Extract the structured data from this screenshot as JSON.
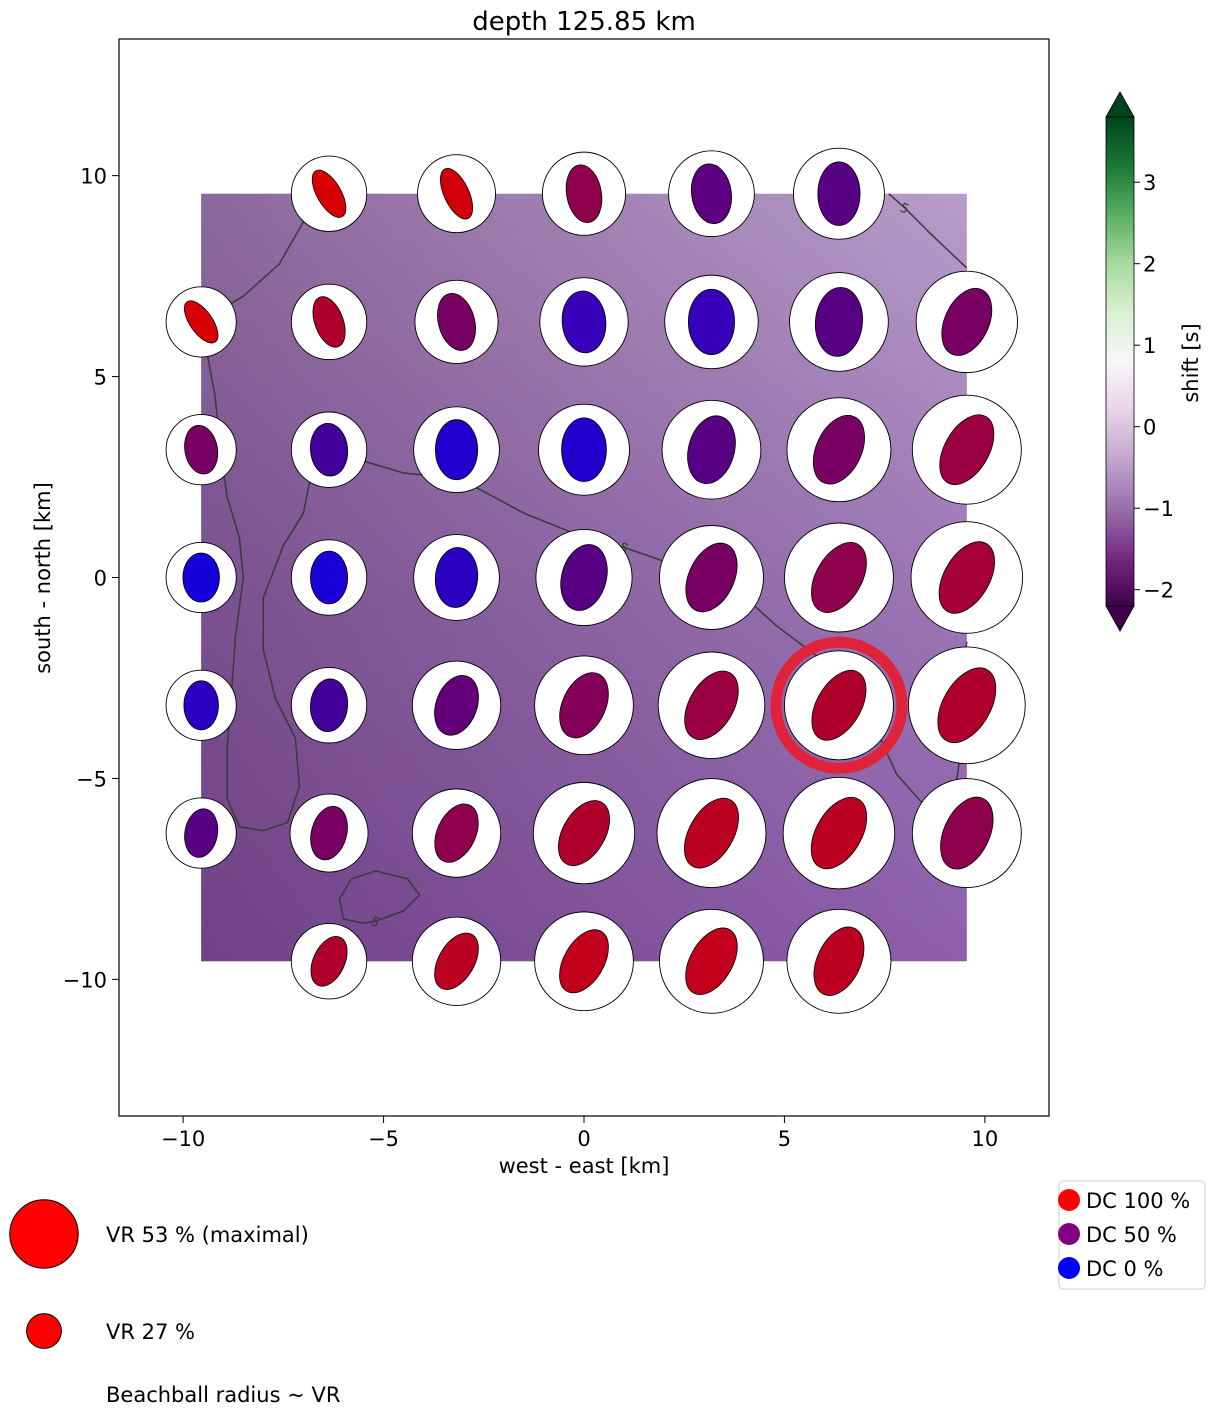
{
  "chart_data": {
    "type": "scatter",
    "title": "depth 125.85 km",
    "xlabel": "west - east [km]",
    "ylabel": "south - north [km]",
    "xlim": [
      -11.6,
      11.6
    ],
    "ylim": [
      -13.4,
      13.4
    ],
    "xticks": [
      -10,
      -5,
      0,
      5,
      10
    ],
    "yticks": [
      -10,
      -5,
      0,
      5,
      10
    ],
    "xtick_labels": [
      "−10",
      "−5",
      "0",
      "5",
      "10"
    ],
    "ytick_labels": [
      "−10",
      "−5",
      "0",
      "5",
      "10"
    ],
    "grid": false,
    "grid_x": [
      -9.55,
      -6.36,
      -3.18,
      0,
      3.18,
      6.36,
      9.55
    ],
    "grid_y": [
      9.55,
      6.36,
      3.18,
      0,
      -3.18,
      -6.36,
      -9.55
    ],
    "background_extent": {
      "x": [
        -9.55,
        9.55
      ],
      "y": [
        -9.55,
        9.55
      ]
    },
    "background_colors": {
      "top": "#b89cc9",
      "mid": "#9b75b5",
      "bottom_left": "#5e1a6c",
      "bottom_right": "#8d5fab"
    },
    "colorbar": {
      "label": "shift [s]",
      "range": [
        -2.2,
        3.8
      ],
      "ticks": [
        3,
        2,
        1,
        0,
        -1,
        -2
      ],
      "tick_labels": [
        "3",
        "2",
        "1",
        "0",
        "−1",
        "−2"
      ],
      "stops": [
        "#00441b",
        "#1b7837",
        "#5aae61",
        "#a6dba0",
        "#d9f0d3",
        "#f7f7f7",
        "#e7d4e8",
        "#c2a5cf",
        "#9970ab",
        "#762a83",
        "#40004b"
      ]
    },
    "contour_label": "5",
    "best_solution": {
      "x": 6.36,
      "y": -3.18,
      "color": "#e0233a"
    },
    "beachballs": [
      {
        "x": -6.36,
        "y": 9.55,
        "vr": 0.29,
        "dc": 0.98,
        "angle": -30,
        "ar": 0.55
      },
      {
        "x": -3.18,
        "y": 9.55,
        "vr": 0.3,
        "dc": 0.95,
        "angle": -25,
        "ar": 0.55
      },
      {
        "x": 0,
        "y": 9.55,
        "vr": 0.32,
        "dc": 0.65,
        "angle": -10,
        "ar": 0.72
      },
      {
        "x": 3.18,
        "y": 9.55,
        "vr": 0.33,
        "dc": 0.42,
        "angle": -8,
        "ar": 0.8
      },
      {
        "x": 6.36,
        "y": 9.55,
        "vr": 0.35,
        "dc": 0.4,
        "angle": 0,
        "ar": 0.8
      },
      {
        "x": -9.55,
        "y": 6.36,
        "vr": 0.27,
        "dc": 0.98,
        "angle": -35,
        "ar": 0.55
      },
      {
        "x": -6.36,
        "y": 6.36,
        "vr": 0.29,
        "dc": 0.8,
        "angle": -20,
        "ar": 0.65
      },
      {
        "x": -3.18,
        "y": 6.36,
        "vr": 0.32,
        "dc": 0.55,
        "angle": -15,
        "ar": 0.75
      },
      {
        "x": 0,
        "y": 6.36,
        "vr": 0.34,
        "dc": 0.25,
        "angle": -5,
        "ar": 0.85
      },
      {
        "x": 3.18,
        "y": 6.36,
        "vr": 0.36,
        "dc": 0.25,
        "angle": 0,
        "ar": 0.85
      },
      {
        "x": 6.36,
        "y": 6.36,
        "vr": 0.38,
        "dc": 0.4,
        "angle": 5,
        "ar": 0.82
      },
      {
        "x": 9.55,
        "y": 6.36,
        "vr": 0.39,
        "dc": 0.55,
        "angle": 25,
        "ar": 0.75
      },
      {
        "x": -9.55,
        "y": 3.18,
        "vr": 0.27,
        "dc": 0.55,
        "angle": -10,
        "ar": 0.8
      },
      {
        "x": -6.36,
        "y": 3.18,
        "vr": 0.29,
        "dc": 0.3,
        "angle": -5,
        "ar": 0.85
      },
      {
        "x": -3.18,
        "y": 3.18,
        "vr": 0.33,
        "dc": 0.15,
        "angle": 0,
        "ar": 0.85
      },
      {
        "x": 0,
        "y": 3.18,
        "vr": 0.35,
        "dc": 0.15,
        "angle": 0,
        "ar": 0.85
      },
      {
        "x": 3.18,
        "y": 3.18,
        "vr": 0.38,
        "dc": 0.4,
        "angle": 15,
        "ar": 0.8
      },
      {
        "x": 6.36,
        "y": 3.18,
        "vr": 0.4,
        "dc": 0.55,
        "angle": 25,
        "ar": 0.75
      },
      {
        "x": 9.55,
        "y": 3.18,
        "vr": 0.42,
        "dc": 0.7,
        "angle": 30,
        "ar": 0.7
      },
      {
        "x": -9.55,
        "y": 0,
        "vr": 0.27,
        "dc": 0.1,
        "angle": 0,
        "ar": 0.9
      },
      {
        "x": -6.36,
        "y": 0,
        "vr": 0.29,
        "dc": 0.12,
        "angle": 0,
        "ar": 0.85
      },
      {
        "x": -3.18,
        "y": 0,
        "vr": 0.33,
        "dc": 0.2,
        "angle": 5,
        "ar": 0.85
      },
      {
        "x": 0,
        "y": 0,
        "vr": 0.37,
        "dc": 0.4,
        "angle": 15,
        "ar": 0.8
      },
      {
        "x": 3.18,
        "y": 0,
        "vr": 0.4,
        "dc": 0.55,
        "angle": 25,
        "ar": 0.75
      },
      {
        "x": 6.36,
        "y": 0,
        "vr": 0.42,
        "dc": 0.65,
        "angle": 30,
        "ar": 0.72
      },
      {
        "x": 9.55,
        "y": 0,
        "vr": 0.43,
        "dc": 0.75,
        "angle": 30,
        "ar": 0.7
      },
      {
        "x": -9.55,
        "y": -3.18,
        "vr": 0.27,
        "dc": 0.2,
        "angle": 0,
        "ar": 0.85
      },
      {
        "x": -6.36,
        "y": -3.18,
        "vr": 0.29,
        "dc": 0.3,
        "angle": 5,
        "ar": 0.85
      },
      {
        "x": -3.18,
        "y": -3.18,
        "vr": 0.34,
        "dc": 0.45,
        "angle": 20,
        "ar": 0.8
      },
      {
        "x": 0,
        "y": -3.18,
        "vr": 0.38,
        "dc": 0.6,
        "angle": 25,
        "ar": 0.75
      },
      {
        "x": 3.18,
        "y": -3.18,
        "vr": 0.41,
        "dc": 0.7,
        "angle": 30,
        "ar": 0.72
      },
      {
        "x": 6.36,
        "y": -3.18,
        "vr": 0.42,
        "dc": 0.8,
        "angle": 30,
        "ar": 0.7
      },
      {
        "x": 9.55,
        "y": -3.18,
        "vr": 0.45,
        "dc": 0.8,
        "angle": 30,
        "ar": 0.7
      },
      {
        "x": -9.55,
        "y": -6.36,
        "vr": 0.27,
        "dc": 0.4,
        "angle": 10,
        "ar": 0.8
      },
      {
        "x": -6.36,
        "y": -6.36,
        "vr": 0.3,
        "dc": 0.55,
        "angle": 15,
        "ar": 0.78
      },
      {
        "x": -3.18,
        "y": -6.36,
        "vr": 0.34,
        "dc": 0.65,
        "angle": 25,
        "ar": 0.75
      },
      {
        "x": 0,
        "y": -6.36,
        "vr": 0.39,
        "dc": 0.8,
        "angle": 30,
        "ar": 0.72
      },
      {
        "x": 3.18,
        "y": -6.36,
        "vr": 0.42,
        "dc": 0.85,
        "angle": 30,
        "ar": 0.7
      },
      {
        "x": 6.36,
        "y": -6.36,
        "vr": 0.43,
        "dc": 0.85,
        "angle": 30,
        "ar": 0.7
      },
      {
        "x": 9.55,
        "y": -6.36,
        "vr": 0.42,
        "dc": 0.65,
        "angle": 25,
        "ar": 0.72
      },
      {
        "x": -6.36,
        "y": -9.55,
        "vr": 0.29,
        "dc": 0.8,
        "angle": 25,
        "ar": 0.72
      },
      {
        "x": -3.18,
        "y": -9.55,
        "vr": 0.34,
        "dc": 0.85,
        "angle": 30,
        "ar": 0.7
      },
      {
        "x": 0,
        "y": -9.55,
        "vr": 0.38,
        "dc": 0.88,
        "angle": 30,
        "ar": 0.7
      },
      {
        "x": 3.18,
        "y": -9.55,
        "vr": 0.4,
        "dc": 0.88,
        "angle": 30,
        "ar": 0.7
      },
      {
        "x": 6.36,
        "y": -9.55,
        "vr": 0.4,
        "dc": 0.85,
        "angle": 25,
        "ar": 0.72
      }
    ],
    "contour_lines": [
      {
        "label_at": null,
        "points": [
          [
            -9.55,
            6.36
          ],
          [
            -8.5,
            7.0
          ],
          [
            -7.6,
            7.8
          ],
          [
            -6.8,
            9.2
          ],
          [
            -6.36,
            9.6
          ]
        ]
      },
      {
        "label_at": null,
        "points": [
          [
            -9.55,
            6.36
          ],
          [
            -9.2,
            4.5
          ],
          [
            -9.05,
            3.0
          ],
          [
            -8.9,
            2.0
          ],
          [
            -8.6,
            1.0
          ],
          [
            -8.5,
            0
          ],
          [
            -8.7,
            -1.5
          ],
          [
            -8.8,
            -3.0
          ],
          [
            -8.9,
            -4.2
          ],
          [
            -8.9,
            -5.5
          ],
          [
            -8.6,
            -6.2
          ],
          [
            -8.0,
            -6.3
          ],
          [
            -7.4,
            -6.1
          ],
          [
            -7.1,
            -5.2
          ],
          [
            -7.2,
            -4.0
          ],
          [
            -7.7,
            -3.0
          ],
          [
            -8.0,
            -1.8
          ],
          [
            -8.0,
            -0.5
          ],
          [
            -7.5,
            0.8
          ],
          [
            -7.0,
            1.6
          ],
          [
            -6.8,
            2.6
          ],
          [
            -6.6,
            3.4
          ]
        ]
      },
      {
        "label_at": [
          1.0,
          0.75
        ],
        "points": [
          [
            -6.6,
            3.4
          ],
          [
            -5.5,
            2.9
          ],
          [
            -4.5,
            2.6
          ],
          [
            -3.5,
            2.5
          ],
          [
            -2.8,
            2.3
          ],
          [
            -1.5,
            1.6
          ],
          [
            0,
            1.0
          ],
          [
            1.0,
            0.75
          ],
          [
            2.0,
            0.4
          ],
          [
            3.0,
            0.1
          ],
          [
            3.8,
            -0.3
          ],
          [
            4.8,
            -1.2
          ],
          [
            6.0,
            -2.1
          ],
          [
            7.0,
            -2.6
          ],
          [
            7.2,
            -3.6
          ],
          [
            7.8,
            -4.9
          ],
          [
            8.7,
            -5.9
          ],
          [
            9.2,
            -5.7
          ],
          [
            9.45,
            -4.0
          ],
          [
            9.5,
            -2.0
          ],
          [
            9.55,
            -1.6
          ]
        ]
      },
      {
        "label_at": [
          8.0,
          9.2
        ],
        "points": [
          [
            7.6,
            9.55
          ],
          [
            8.0,
            9.2
          ],
          [
            8.6,
            8.6
          ],
          [
            9.55,
            7.7
          ]
        ]
      },
      {
        "label_at": [
          -5.2,
          -8.55
        ],
        "points": [
          [
            -5.2,
            -8.55
          ],
          [
            -4.5,
            -8.3
          ],
          [
            -4.1,
            -7.9
          ],
          [
            -4.4,
            -7.5
          ],
          [
            -5.2,
            -7.3
          ],
          [
            -5.8,
            -7.5
          ],
          [
            -6.1,
            -8.0
          ],
          [
            -6.0,
            -8.5
          ],
          [
            -5.5,
            -8.6
          ],
          [
            -5.2,
            -8.55
          ]
        ]
      }
    ],
    "legend_vr": [
      {
        "label": "VR 53 % (maximal)",
        "vr": 0.53
      },
      {
        "label": "VR 27 %",
        "vr": 0.27
      }
    ],
    "legend_vr_note": "Beachball radius ~ VR",
    "legend_dc": [
      {
        "label": "DC 100 %",
        "color": "#ff0000"
      },
      {
        "label": "DC 50 %",
        "color": "#800080"
      },
      {
        "label": "DC 0 %",
        "color": "#0000ff"
      }
    ]
  }
}
